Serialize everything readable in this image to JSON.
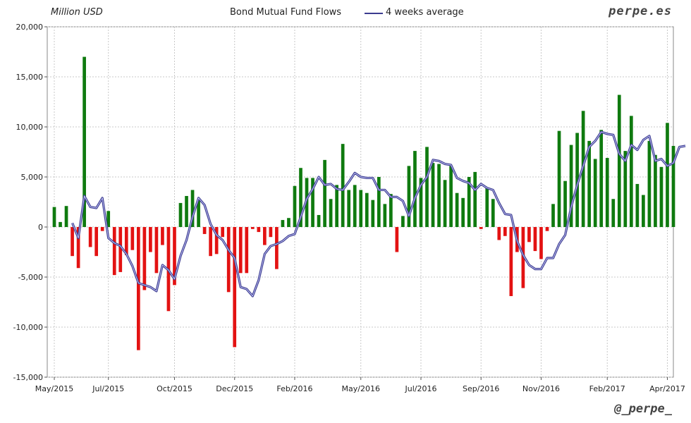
{
  "header": {
    "unit_label": "Million USD",
    "title": "Bond Mutual Fund Flows",
    "legend_average": "4 weeks average",
    "brand": "perpe.es",
    "handle": "@_perpe_"
  },
  "colors": {
    "positive": "#0f7a0f",
    "negative": "#e31212",
    "average": "#3b3b8f",
    "average_highlight": "#cfd0ff",
    "grid": "#c8c8c8"
  },
  "chart_data": {
    "type": "bar",
    "title": "Bond Mutual Fund Flows",
    "ylabel": "Million USD",
    "ylim": [
      -15000,
      20000
    ],
    "yticks": [
      20000,
      15000,
      10000,
      5000,
      0,
      -5000,
      -10000,
      -15000
    ],
    "ytick_labels": [
      "20,000",
      "15,000",
      "10,000",
      "5,000",
      "0",
      "-5,000",
      "-10,000",
      "-15,000"
    ],
    "x_tick_labels": [
      "May/2015",
      "Jul/2015",
      "Oct/2015",
      "Dec/2015",
      "Feb/2016",
      "May/2016",
      "Jul/2016",
      "Sep/2016",
      "Nov/2016",
      "Feb/2017",
      "Apr/2017"
    ],
    "x_tick_weeks": [
      0,
      9,
      20,
      30,
      40,
      51,
      61,
      71,
      81,
      92,
      102
    ],
    "grid": true,
    "legend_position": "top",
    "series": [
      {
        "name": "Bond Mutual Fund Flows",
        "kind": "bar",
        "values": [
          2000,
          500,
          2100,
          -2900,
          -4100,
          17000,
          -2000,
          -2900,
          -400,
          1600,
          -4800,
          -4500,
          -2800,
          -2300,
          -12300,
          -6300,
          -2500,
          -4600,
          -1800,
          -8400,
          -5800,
          2400,
          3100,
          3700,
          2700,
          -700,
          -2900,
          -2700,
          -1000,
          -6500,
          -12000,
          -4600,
          -4600,
          -200,
          -500,
          -1800,
          -1000,
          -4200,
          700,
          900,
          4100,
          5900,
          4900,
          4900,
          1200,
          6700,
          2800,
          4200,
          8300,
          3700,
          4200,
          3700,
          3400,
          2700,
          5000,
          2300,
          3300,
          -2500,
          1100,
          6100,
          7600,
          4900,
          8000,
          6400,
          6300,
          4700,
          6100,
          3400,
          2900,
          5000,
          5500,
          -200,
          3900,
          2800,
          -1300,
          -900,
          -6900,
          -2500,
          -6100,
          -1500,
          -2400,
          -3200,
          -400,
          2300,
          9600,
          4600,
          8200,
          9400,
          11600,
          8600,
          6800,
          9700,
          6900,
          2800,
          13200,
          7600,
          11100,
          4300,
          3200,
          8600,
          7200,
          6000,
          10400,
          8100
        ]
      },
      {
        "name": "4 weeks average",
        "kind": "line",
        "x_start_week": 3,
        "values": [
          400,
          -1100,
          3100,
          2000,
          1900,
          2900,
          -1100,
          -1600,
          -1900,
          -2700,
          -3900,
          -5600,
          -5800,
          -6000,
          -6400,
          -3800,
          -4300,
          -5200,
          -2900,
          -1300,
          1000,
          2900,
          2200,
          300,
          -800,
          -1300,
          -2300,
          -3100,
          -6000,
          -6200,
          -6900,
          -5300,
          -2700,
          -1900,
          -1700,
          -1400,
          -900,
          -700,
          1000,
          2800,
          3800,
          5000,
          4200,
          4300,
          3800,
          3700,
          4500,
          5400,
          5000,
          4900,
          4900,
          3700,
          3700,
          3000,
          3000,
          2600,
          1100,
          2900,
          4200,
          5000,
          6700,
          6600,
          6300,
          6200,
          4900,
          4600,
          4400,
          3700,
          4300,
          3900,
          3700,
          2400,
          1300,
          1200,
          -1400,
          -2800,
          -3800,
          -4200,
          -4200,
          -3100,
          -3100,
          -1700,
          -800,
          2000,
          4200,
          6100,
          8000,
          8600,
          9500,
          9300,
          9200,
          7300,
          6600,
          8200,
          7700,
          8700,
          9100,
          6600,
          6800,
          6100,
          6400,
          8000,
          8100
        ]
      }
    ]
  }
}
